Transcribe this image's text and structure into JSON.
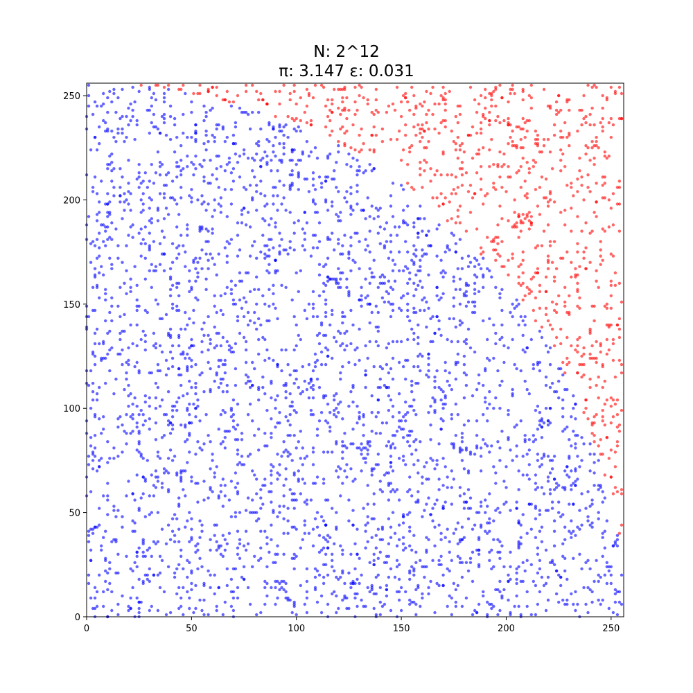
{
  "chart_data": {
    "type": "scatter",
    "title_line1": "N: 2^12",
    "title_line2": "π: 3.147  ε: 0.031",
    "xlabel": "",
    "ylabel": "",
    "xlim": [
      0,
      256
    ],
    "ylim": [
      0,
      256
    ],
    "x_ticks": [
      0,
      50,
      100,
      150,
      200,
      250
    ],
    "y_ticks": [
      0,
      50,
      100,
      150,
      200,
      250
    ],
    "grid": false,
    "n_points": 4096,
    "circle_radius": 256,
    "inside_color": "#0000ff",
    "outside_color": "#ff0000",
    "marker_alpha": 0.6,
    "series": [
      {
        "color": "#0000ff",
        "description_from_rule": "x^2 + y^2 <= 256^2"
      },
      {
        "color": "#ff0000",
        "description_from_rule": "x^2 + y^2 > 256^2"
      }
    ]
  }
}
